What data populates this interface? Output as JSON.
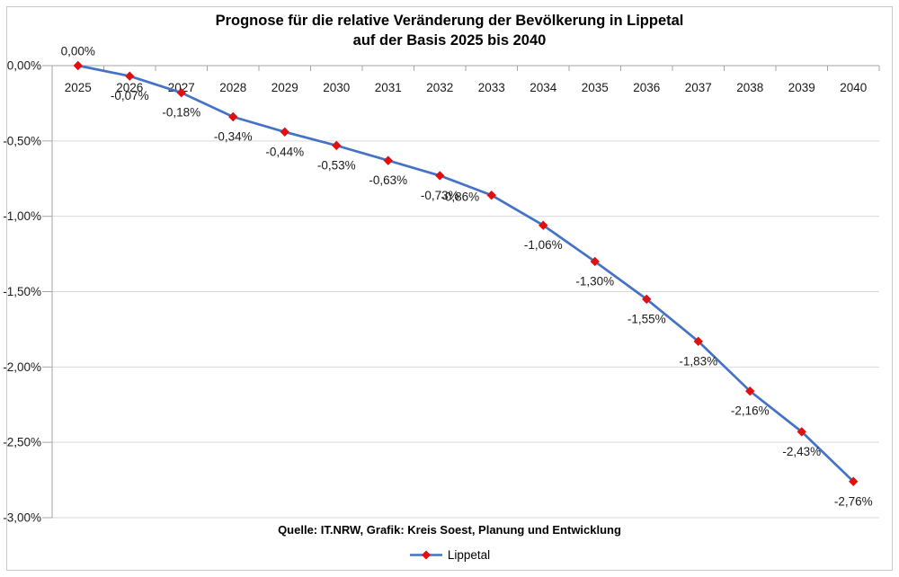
{
  "title": {
    "line1": "Prognose für die relative Veränderung der Bevölkerung in Lippetal",
    "line2": "auf der Basis 2025 bis 2040"
  },
  "source_note": "Quelle: IT.NRW, Grafik: Kreis Soest, Planung und Entwicklung",
  "legend": {
    "label": "Lippetal"
  },
  "colors": {
    "line": "#4472c4",
    "marker": "#e01010",
    "gridline": "#d9d9d9",
    "axis": "#a6a6a6",
    "frame_border": "#c8c8c8",
    "text": "#1a1a1a"
  },
  "chart_data": {
    "type": "line",
    "title": "Prognose für die relative Veränderung der Bevölkerung in Lippetal auf der Basis 2025 bis 2040",
    "xlabel": "",
    "ylabel": "",
    "categories": [
      "2025",
      "2026",
      "2027",
      "2028",
      "2029",
      "2030",
      "2031",
      "2032",
      "2033",
      "2034",
      "2035",
      "2036",
      "2037",
      "2038",
      "2039",
      "2040"
    ],
    "series": [
      {
        "name": "Lippetal",
        "values": [
          0.0,
          -0.07,
          -0.18,
          -0.34,
          -0.44,
          -0.53,
          -0.63,
          -0.73,
          -0.86,
          -1.06,
          -1.3,
          -1.55,
          -1.83,
          -2.16,
          -2.43,
          -2.76
        ],
        "labels": [
          "0,00%",
          "-0,07%",
          "-0,18%",
          "-0,34%",
          "-0,44%",
          "-0,53%",
          "-0,63%",
          "-0,73%",
          "-0,86%",
          "-1,06%",
          "-1,30%",
          "-1,55%",
          "-1,83%",
          "-2,16%",
          "-2,43%",
          "-2,76%"
        ]
      }
    ],
    "ylim": [
      -3.0,
      0.0
    ],
    "y_tick_values": [
      0.0,
      -0.5,
      -1.0,
      -1.5,
      -2.0,
      -2.5,
      -3.0
    ],
    "y_tick_labels": [
      "0,00%",
      "-0,50%",
      "-1,00%",
      "-1,50%",
      "-2,00%",
      "-2,50%",
      "-3,00%"
    ],
    "grid": true,
    "marker": "diamond",
    "legend_position": "bottom"
  }
}
